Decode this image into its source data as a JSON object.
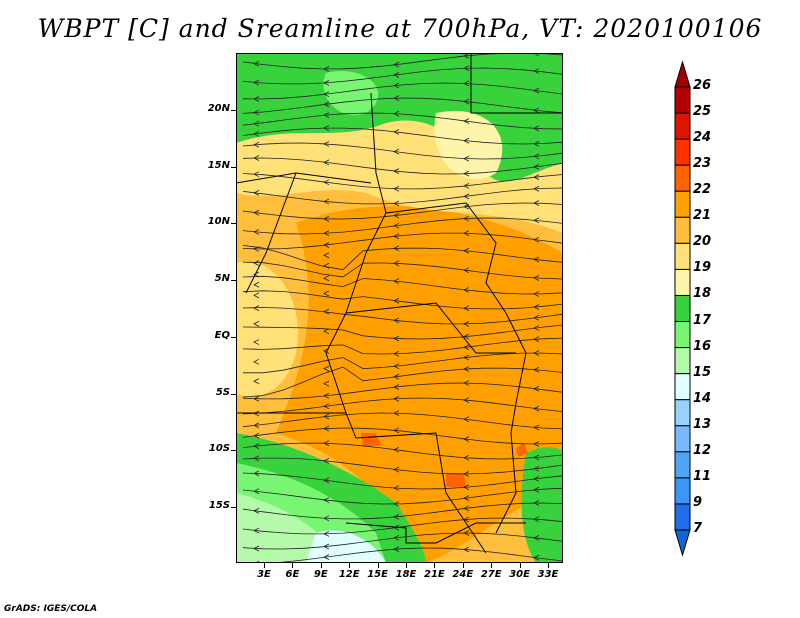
{
  "title": "WBPT [C] and Sreamline at 700hPa, VT: 2020100106",
  "footer": "GrADS: IGES/COLA",
  "map": {
    "lat_labels": [
      "20N",
      "15N",
      "10N",
      "5N",
      "EQ",
      "5S",
      "10S",
      "15S"
    ],
    "lon_labels": [
      "3E",
      "6E",
      "9E",
      "12E",
      "15E",
      "18E",
      "21E",
      "24E",
      "27E",
      "30E",
      "33E"
    ]
  },
  "colorbar": {
    "labels": [
      "26",
      "25",
      "24",
      "23",
      "22",
      "21",
      "20",
      "19",
      "18",
      "17",
      "16",
      "15",
      "14",
      "13",
      "12",
      "11",
      "9",
      "7"
    ],
    "colors": [
      "#b40000",
      "#dc1400",
      "#ff3200",
      "#ff6400",
      "#ffa000",
      "#ffbe3c",
      "#ffe178",
      "#fff5aa",
      "#37d23c",
      "#78f573",
      "#b4faaa",
      "#e1ffff",
      "#96d2fa",
      "#78b9fa",
      "#50a5f5",
      "#3c96f5",
      "#1e6eeb"
    ],
    "top_arrow": "#a00000",
    "bottom_arrow": "#1464d2"
  }
}
